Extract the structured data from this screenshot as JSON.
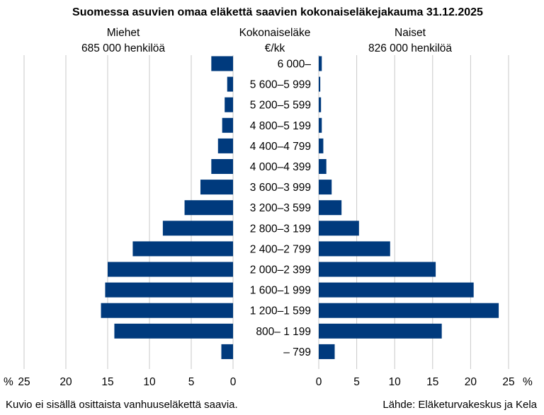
{
  "chart_data": {
    "type": "bar",
    "orientation": "horizontal-butterfly",
    "title": "Suomessa asuvien omaa eläkettä saavien kokonaiseläkejakauma 31.12.2025",
    "center_axis_label": [
      "Kokonaiseläke",
      "€/kk"
    ],
    "unit_label": "%",
    "categories": [
      "6 000–",
      "5 600–5 999",
      "5 200–5 599",
      "4 800–5 199",
      "4 400–4 799",
      "4 000–4 399",
      "3 600–3 999",
      "3 200–3 599",
      "2 800–3 199",
      "2 400–2 799",
      "2 000–2 399",
      "1 600–1 999",
      "1 200–1 599",
      "800– 1 199",
      "– 799"
    ],
    "series": [
      {
        "name": "Miehet",
        "subtitle": "685 000 henkilöä",
        "side": "left",
        "values": [
          2.6,
          0.7,
          1.0,
          1.3,
          1.8,
          2.6,
          3.9,
          5.8,
          8.4,
          12.0,
          15.0,
          15.3,
          15.8,
          14.2,
          1.4
        ]
      },
      {
        "name": "Naiset",
        "subtitle": "826 000 henkilöä",
        "side": "right",
        "values": [
          0.4,
          0.2,
          0.3,
          0.4,
          0.6,
          1.0,
          1.7,
          3.0,
          5.3,
          9.4,
          15.4,
          20.4,
          23.7,
          16.2,
          2.1
        ]
      }
    ],
    "xlim": [
      0,
      25
    ],
    "ticks": [
      "0",
      "5",
      "10",
      "15",
      "20",
      "25"
    ],
    "grid": true,
    "bar_color": "#003a7d",
    "grid_color": "#c8c8c8",
    "footnote": "Kuvio ei sisällä osittaista vanhuuseläkettä saavia.",
    "source": "Lähde: Eläketurvakeskus ja Kela"
  }
}
